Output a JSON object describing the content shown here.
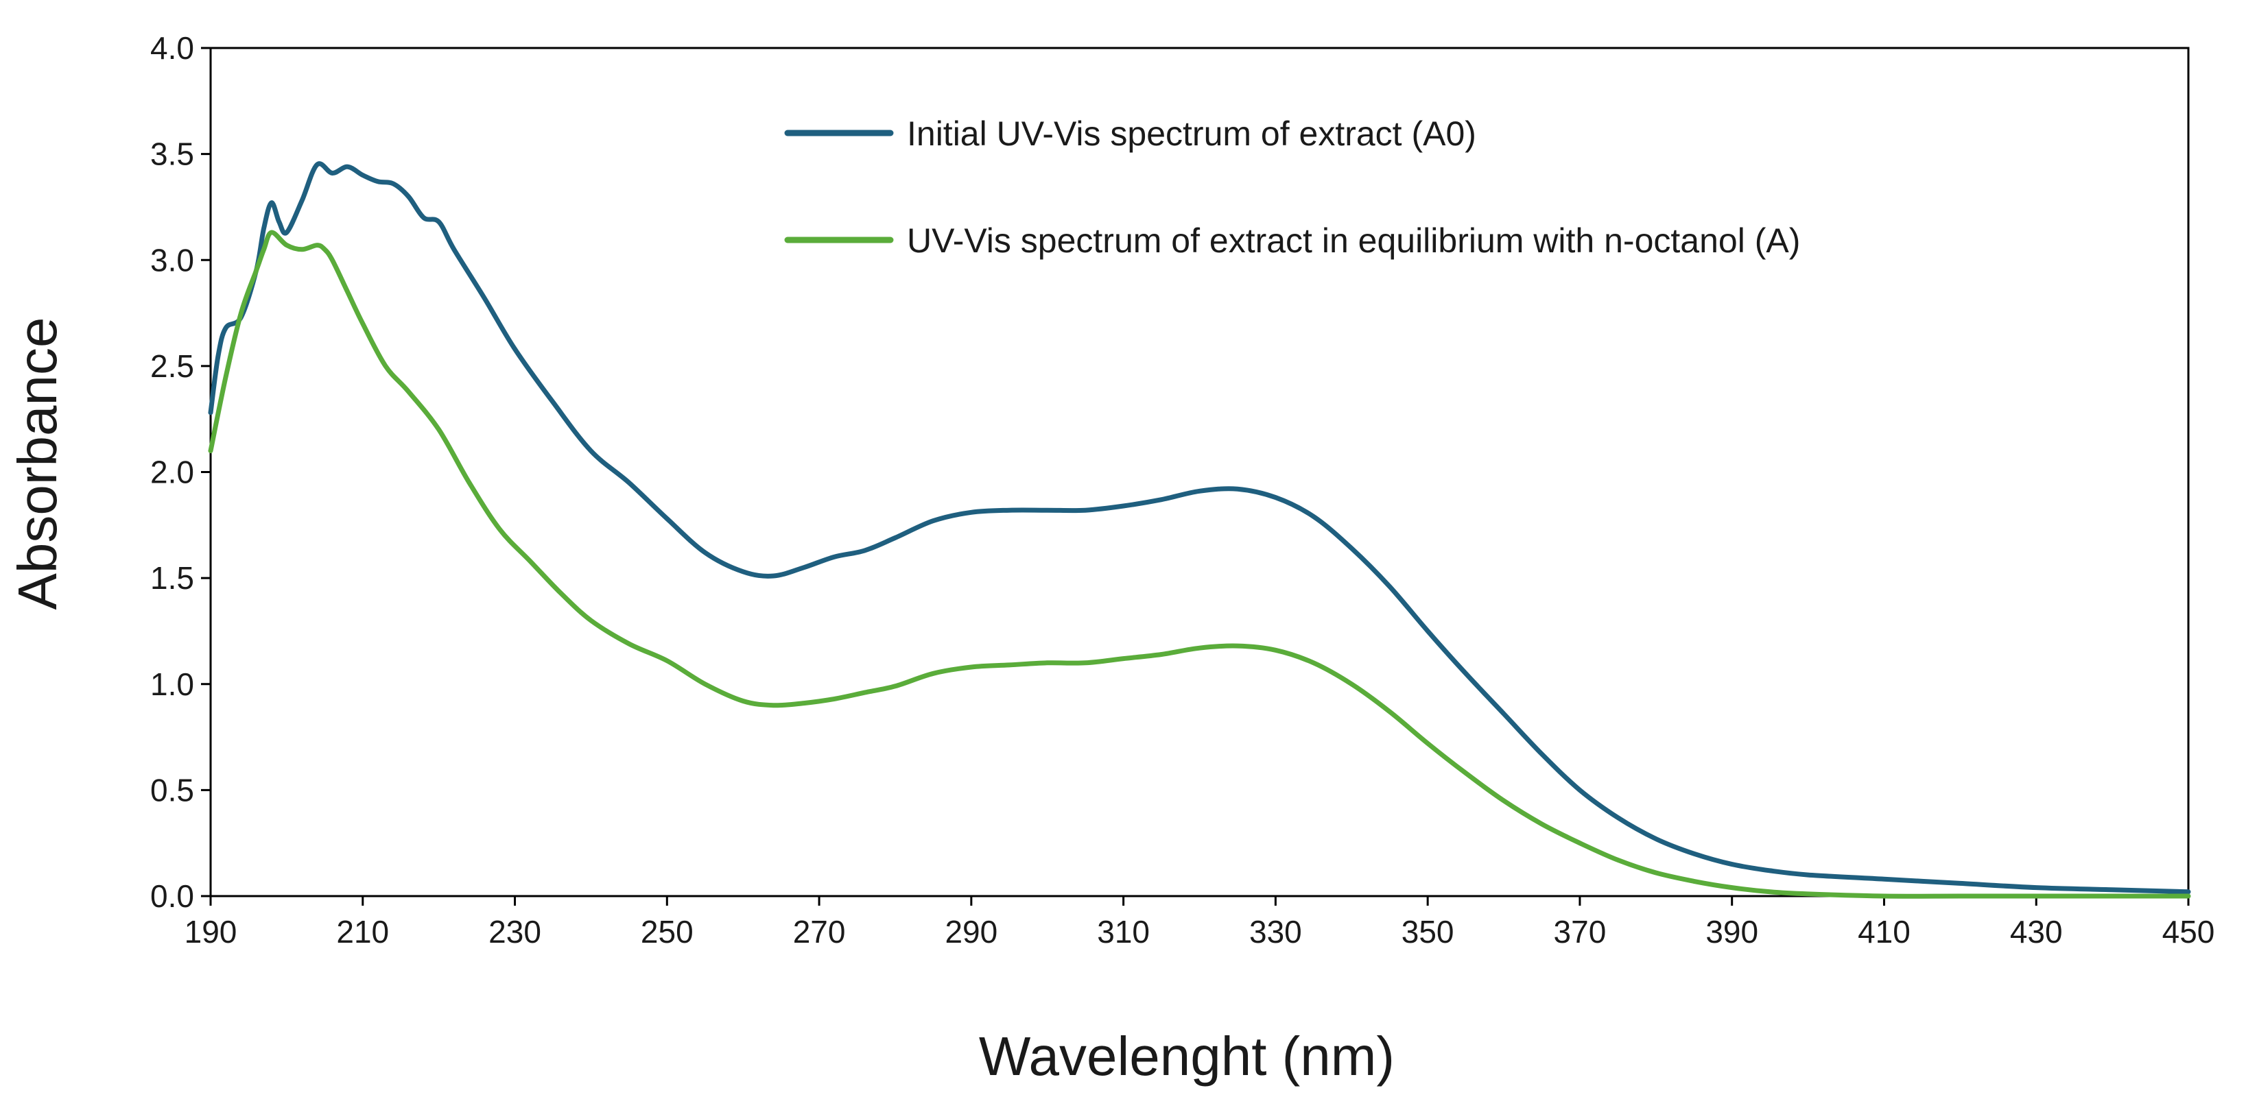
{
  "chart_data": {
    "type": "line",
    "title": "",
    "xlabel": "Wavelenght (nm)",
    "ylabel": "Absorbance",
    "xlim": [
      190,
      450
    ],
    "ylim": [
      0,
      4.0
    ],
    "x_ticks": [
      "190",
      "210",
      "230",
      "250",
      "270",
      "290",
      "310",
      "330",
      "350",
      "370",
      "390",
      "410",
      "430",
      "450"
    ],
    "y_ticks": [
      "0.0",
      "0.5",
      "1.0",
      "1.5",
      "2.0",
      "2.5",
      "3.0",
      "3.5",
      "4.0"
    ],
    "grid": false,
    "legend_position": "top-center",
    "series": [
      {
        "name": "Initial UV-Vis spectrum of extract (A0)",
        "color": "#1f5f7f",
        "x": [
          190,
          191,
          192,
          194,
          196,
          197,
          198,
          199,
          200,
          202,
          204,
          206,
          208,
          210,
          212,
          214,
          216,
          218,
          220,
          222,
          226,
          230,
          235,
          240,
          245,
          250,
          255,
          260,
          264,
          268,
          272,
          276,
          280,
          285,
          290,
          295,
          300,
          305,
          310,
          315,
          320,
          325,
          330,
          335,
          340,
          345,
          350,
          355,
          360,
          365,
          370,
          375,
          380,
          385,
          390,
          395,
          400,
          410,
          420,
          430,
          440,
          450
        ],
        "y": [
          2.28,
          2.55,
          2.68,
          2.73,
          2.95,
          3.15,
          3.27,
          3.18,
          3.13,
          3.28,
          3.45,
          3.41,
          3.44,
          3.4,
          3.37,
          3.36,
          3.3,
          3.2,
          3.18,
          3.05,
          2.82,
          2.58,
          2.33,
          2.1,
          1.95,
          1.78,
          1.62,
          1.53,
          1.51,
          1.55,
          1.6,
          1.63,
          1.69,
          1.77,
          1.81,
          1.82,
          1.82,
          1.82,
          1.84,
          1.87,
          1.91,
          1.92,
          1.88,
          1.79,
          1.64,
          1.46,
          1.25,
          1.05,
          0.86,
          0.67,
          0.5,
          0.37,
          0.27,
          0.2,
          0.15,
          0.12,
          0.1,
          0.08,
          0.06,
          0.04,
          0.03,
          0.02
        ]
      },
      {
        "name": "UV-Vis spectrum of extract in equilibrium with n-octanol (A)",
        "color": "#5aac3a",
        "x": [
          190,
          192,
          194,
          196,
          197,
          198,
          200,
          202,
          204,
          205,
          206,
          208,
          210,
          213,
          216,
          220,
          224,
          228,
          232,
          236,
          240,
          245,
          250,
          255,
          260,
          264,
          268,
          272,
          276,
          280,
          285,
          290,
          295,
          300,
          305,
          310,
          315,
          320,
          325,
          330,
          335,
          340,
          345,
          350,
          355,
          360,
          365,
          370,
          375,
          380,
          385,
          390,
          395,
          400,
          410,
          420,
          430,
          440,
          450
        ],
        "y": [
          2.1,
          2.45,
          2.75,
          2.95,
          3.05,
          3.13,
          3.07,
          3.05,
          3.07,
          3.05,
          3.0,
          2.85,
          2.7,
          2.5,
          2.38,
          2.2,
          1.95,
          1.73,
          1.58,
          1.43,
          1.3,
          1.19,
          1.11,
          1.0,
          0.92,
          0.9,
          0.91,
          0.93,
          0.96,
          0.99,
          1.05,
          1.08,
          1.09,
          1.1,
          1.1,
          1.12,
          1.14,
          1.17,
          1.18,
          1.16,
          1.1,
          1.0,
          0.87,
          0.72,
          0.58,
          0.45,
          0.34,
          0.25,
          0.17,
          0.11,
          0.07,
          0.04,
          0.02,
          0.01,
          0.0,
          0.0,
          0.0,
          0.0,
          0.0
        ]
      }
    ]
  }
}
